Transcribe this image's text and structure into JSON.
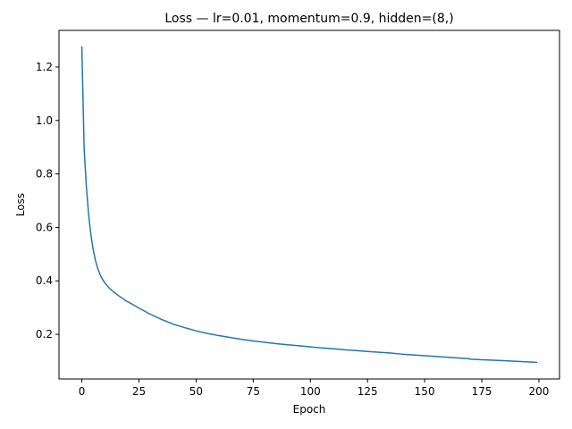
{
  "chart_data": {
    "type": "line",
    "title": "Loss — lr=0.01, momentum=0.9, hidden=(8,)",
    "xlabel": "Epoch",
    "ylabel": "Loss",
    "xlim": [
      -10,
      209
    ],
    "ylim": [
      0.033,
      1.337
    ],
    "xticks": [
      0,
      25,
      50,
      75,
      100,
      125,
      150,
      175,
      200
    ],
    "yticks": [
      0.2,
      0.4,
      0.6,
      0.8,
      1.0,
      1.2
    ],
    "ytick_labels": [
      "0.2",
      "0.4",
      "0.6",
      "0.8",
      "1.0",
      "1.2"
    ],
    "grid": false,
    "legend": "none",
    "series": [
      {
        "color": "#1f77b4",
        "x": [
          0,
          1,
          2,
          3,
          4,
          5,
          6,
          7,
          8,
          9,
          10,
          12,
          14,
          16,
          18,
          20,
          22,
          25,
          30,
          35,
          40,
          45,
          50,
          55,
          60,
          65,
          70,
          75,
          80,
          85,
          90,
          95,
          100,
          105,
          110,
          115,
          120,
          125,
          130,
          135,
          140,
          145,
          150,
          155,
          160,
          165,
          169,
          170,
          175,
          180,
          185,
          190,
          195,
          199
        ],
        "y": [
          1.275,
          0.895,
          0.75,
          0.645,
          0.57,
          0.515,
          0.475,
          0.445,
          0.423,
          0.406,
          0.393,
          0.373,
          0.358,
          0.345,
          0.333,
          0.322,
          0.313,
          0.298,
          0.275,
          0.255,
          0.238,
          0.225,
          0.213,
          0.203,
          0.195,
          0.188,
          0.181,
          0.175,
          0.17,
          0.165,
          0.161,
          0.157,
          0.153,
          0.149,
          0.146,
          0.142,
          0.139,
          0.136,
          0.133,
          0.13,
          0.126,
          0.123,
          0.12,
          0.117,
          0.114,
          0.111,
          0.109,
          0.107,
          0.105,
          0.103,
          0.101,
          0.099,
          0.097,
          0.095
        ]
      }
    ]
  }
}
